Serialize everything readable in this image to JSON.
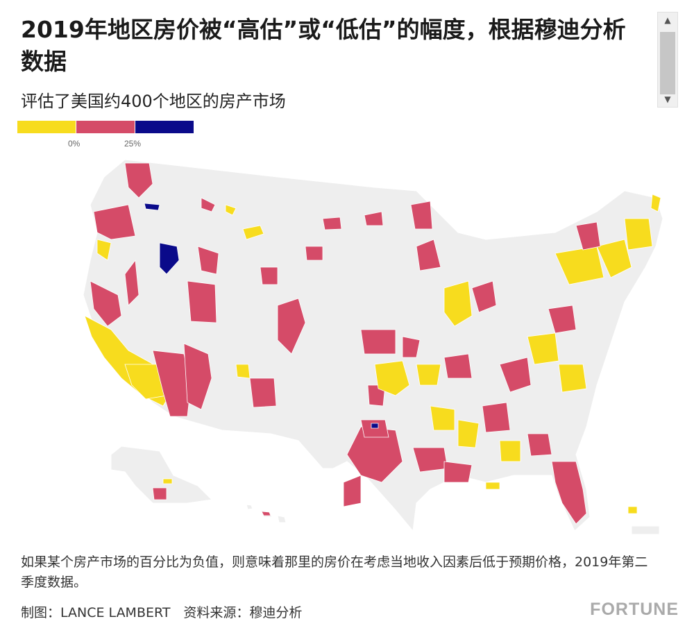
{
  "title": "2019年地区房价被“高估”或“低估”的幅度，根据穆迪分析数据",
  "subtitle": "评估了美国约400个地区的房产市场",
  "legend": {
    "ticks": [
      "0%",
      "25%"
    ],
    "colors": {
      "undervalued": "#f7dc1e",
      "overvalued": "#d54b68",
      "highly_overvalued": "#0a0a8a"
    }
  },
  "map": {
    "base_color": "#eeeeee",
    "border_color": "#ffffff",
    "colors": {
      "yellow": "#f7dc1e",
      "red": "#d54b68",
      "navy": "#0a0a8a"
    }
  },
  "scrollbar": {
    "up_icon": "▲",
    "down_icon": "▼"
  },
  "footnote": "如果某个房产市场的百分比为负值，则意味着那里的房价在考虑当地收入因素后低于预期价格，2019年第二季度数据。",
  "credit": "制图：LANCE LAMBERT　资料来源：穆迪分析",
  "brand": "FORTUNE"
}
